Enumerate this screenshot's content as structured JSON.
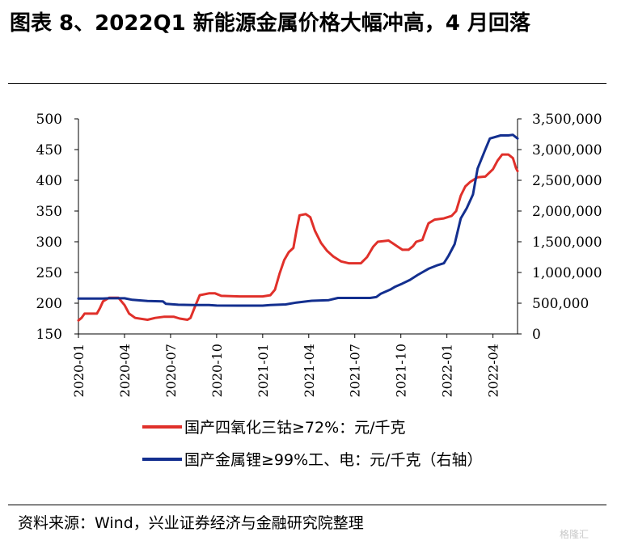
{
  "title": "图表 8、2022Q1 新能源金属价格大幅冲高，4 月回落",
  "source": "资料来源：Wind，兴业证券经济与金融研究院整理",
  "watermark": "格隆汇",
  "chart_data": {
    "type": "line",
    "x_ticks": [
      "2020-01",
      "2020-04",
      "2020-07",
      "2020-10",
      "2021-01",
      "2021-04",
      "2021-07",
      "2021-10",
      "2022-01",
      "2022-04"
    ],
    "x_range": [
      0,
      28.6
    ],
    "y_left": {
      "ticks": [
        "500",
        "450",
        "400",
        "350",
        "300",
        "250",
        "200",
        "150"
      ],
      "range": [
        150,
        500
      ]
    },
    "y_right": {
      "ticks": [
        "3,500,000",
        "3,000,000",
        "2,500,000",
        "2,000,000",
        "1,500,000",
        "1,000,000",
        "500,000",
        "0"
      ],
      "range": [
        0,
        3500000
      ]
    },
    "series": [
      {
        "name": "国产四氧化三钴≥72%：元/千克",
        "axis": "left",
        "color": "#e0302a",
        "points": [
          [
            0,
            172
          ],
          [
            0.2,
            176
          ],
          [
            0.4,
            183
          ],
          [
            1.2,
            183
          ],
          [
            1.4,
            192
          ],
          [
            1.6,
            203
          ],
          [
            2.0,
            209
          ],
          [
            2.6,
            209
          ],
          [
            3.0,
            197
          ],
          [
            3.3,
            183
          ],
          [
            3.7,
            176
          ],
          [
            4.5,
            173
          ],
          [
            5.0,
            176
          ],
          [
            5.6,
            178
          ],
          [
            6.2,
            178
          ],
          [
            6.6,
            175
          ],
          [
            7.1,
            173
          ],
          [
            7.3,
            176
          ],
          [
            7.6,
            195
          ],
          [
            7.9,
            213
          ],
          [
            8.5,
            216
          ],
          [
            8.9,
            216
          ],
          [
            9.3,
            212
          ],
          [
            10.5,
            211
          ],
          [
            12.0,
            211
          ],
          [
            12.5,
            213
          ],
          [
            12.8,
            222
          ],
          [
            13.1,
            248
          ],
          [
            13.4,
            270
          ],
          [
            13.7,
            283
          ],
          [
            14.0,
            290
          ],
          [
            14.2,
            318
          ],
          [
            14.4,
            343
          ],
          [
            14.8,
            345
          ],
          [
            15.1,
            340
          ],
          [
            15.4,
            318
          ],
          [
            15.8,
            298
          ],
          [
            16.2,
            285
          ],
          [
            16.6,
            276
          ],
          [
            17.1,
            268
          ],
          [
            17.6,
            265
          ],
          [
            18.4,
            265
          ],
          [
            18.8,
            275
          ],
          [
            19.2,
            292
          ],
          [
            19.5,
            300
          ],
          [
            20.2,
            302
          ],
          [
            20.5,
            297
          ],
          [
            20.8,
            292
          ],
          [
            21.1,
            287
          ],
          [
            21.5,
            287
          ],
          [
            21.8,
            293
          ],
          [
            22.0,
            300
          ],
          [
            22.4,
            303
          ],
          [
            22.6,
            317
          ],
          [
            22.8,
            330
          ],
          [
            23.2,
            336
          ],
          [
            23.8,
            338
          ],
          [
            24.3,
            342
          ],
          [
            24.6,
            350
          ],
          [
            24.9,
            375
          ],
          [
            25.2,
            390
          ],
          [
            25.5,
            397
          ],
          [
            26.0,
            405
          ],
          [
            26.5,
            406
          ],
          [
            27.0,
            418
          ],
          [
            27.3,
            432
          ],
          [
            27.6,
            442
          ],
          [
            28.0,
            442
          ],
          [
            28.3,
            436
          ],
          [
            28.5,
            420
          ],
          [
            28.6,
            415
          ]
        ]
      },
      {
        "name": "国产金属锂≥99%工、电：元/千克（右轴）",
        "axis": "right",
        "color": "#132f8f",
        "points": [
          [
            0,
            575000
          ],
          [
            1.5,
            575000
          ],
          [
            2.0,
            580000
          ],
          [
            3.0,
            580000
          ],
          [
            3.5,
            555000
          ],
          [
            4.5,
            535000
          ],
          [
            5.5,
            530000
          ],
          [
            5.7,
            490000
          ],
          [
            6.5,
            475000
          ],
          [
            7.5,
            470000
          ],
          [
            8.5,
            470000
          ],
          [
            9.0,
            462000
          ],
          [
            10.5,
            460000
          ],
          [
            12.0,
            460000
          ],
          [
            12.5,
            470000
          ],
          [
            13.5,
            480000
          ],
          [
            14.2,
            510000
          ],
          [
            15.2,
            540000
          ],
          [
            16.3,
            550000
          ],
          [
            16.9,
            585000
          ],
          [
            18.0,
            585000
          ],
          [
            19.0,
            585000
          ],
          [
            19.4,
            600000
          ],
          [
            19.7,
            655000
          ],
          [
            20.3,
            720000
          ],
          [
            20.6,
            765000
          ],
          [
            21.1,
            820000
          ],
          [
            21.6,
            880000
          ],
          [
            22.1,
            960000
          ],
          [
            22.8,
            1060000
          ],
          [
            23.4,
            1120000
          ],
          [
            23.8,
            1150000
          ],
          [
            24.1,
            1270000
          ],
          [
            24.5,
            1460000
          ],
          [
            24.9,
            1880000
          ],
          [
            25.3,
            2050000
          ],
          [
            25.7,
            2270000
          ],
          [
            26.0,
            2690000
          ],
          [
            26.5,
            3000000
          ],
          [
            26.8,
            3180000
          ],
          [
            27.5,
            3230000
          ],
          [
            28.0,
            3230000
          ],
          [
            28.3,
            3240000
          ],
          [
            28.6,
            3180000
          ]
        ]
      }
    ]
  }
}
